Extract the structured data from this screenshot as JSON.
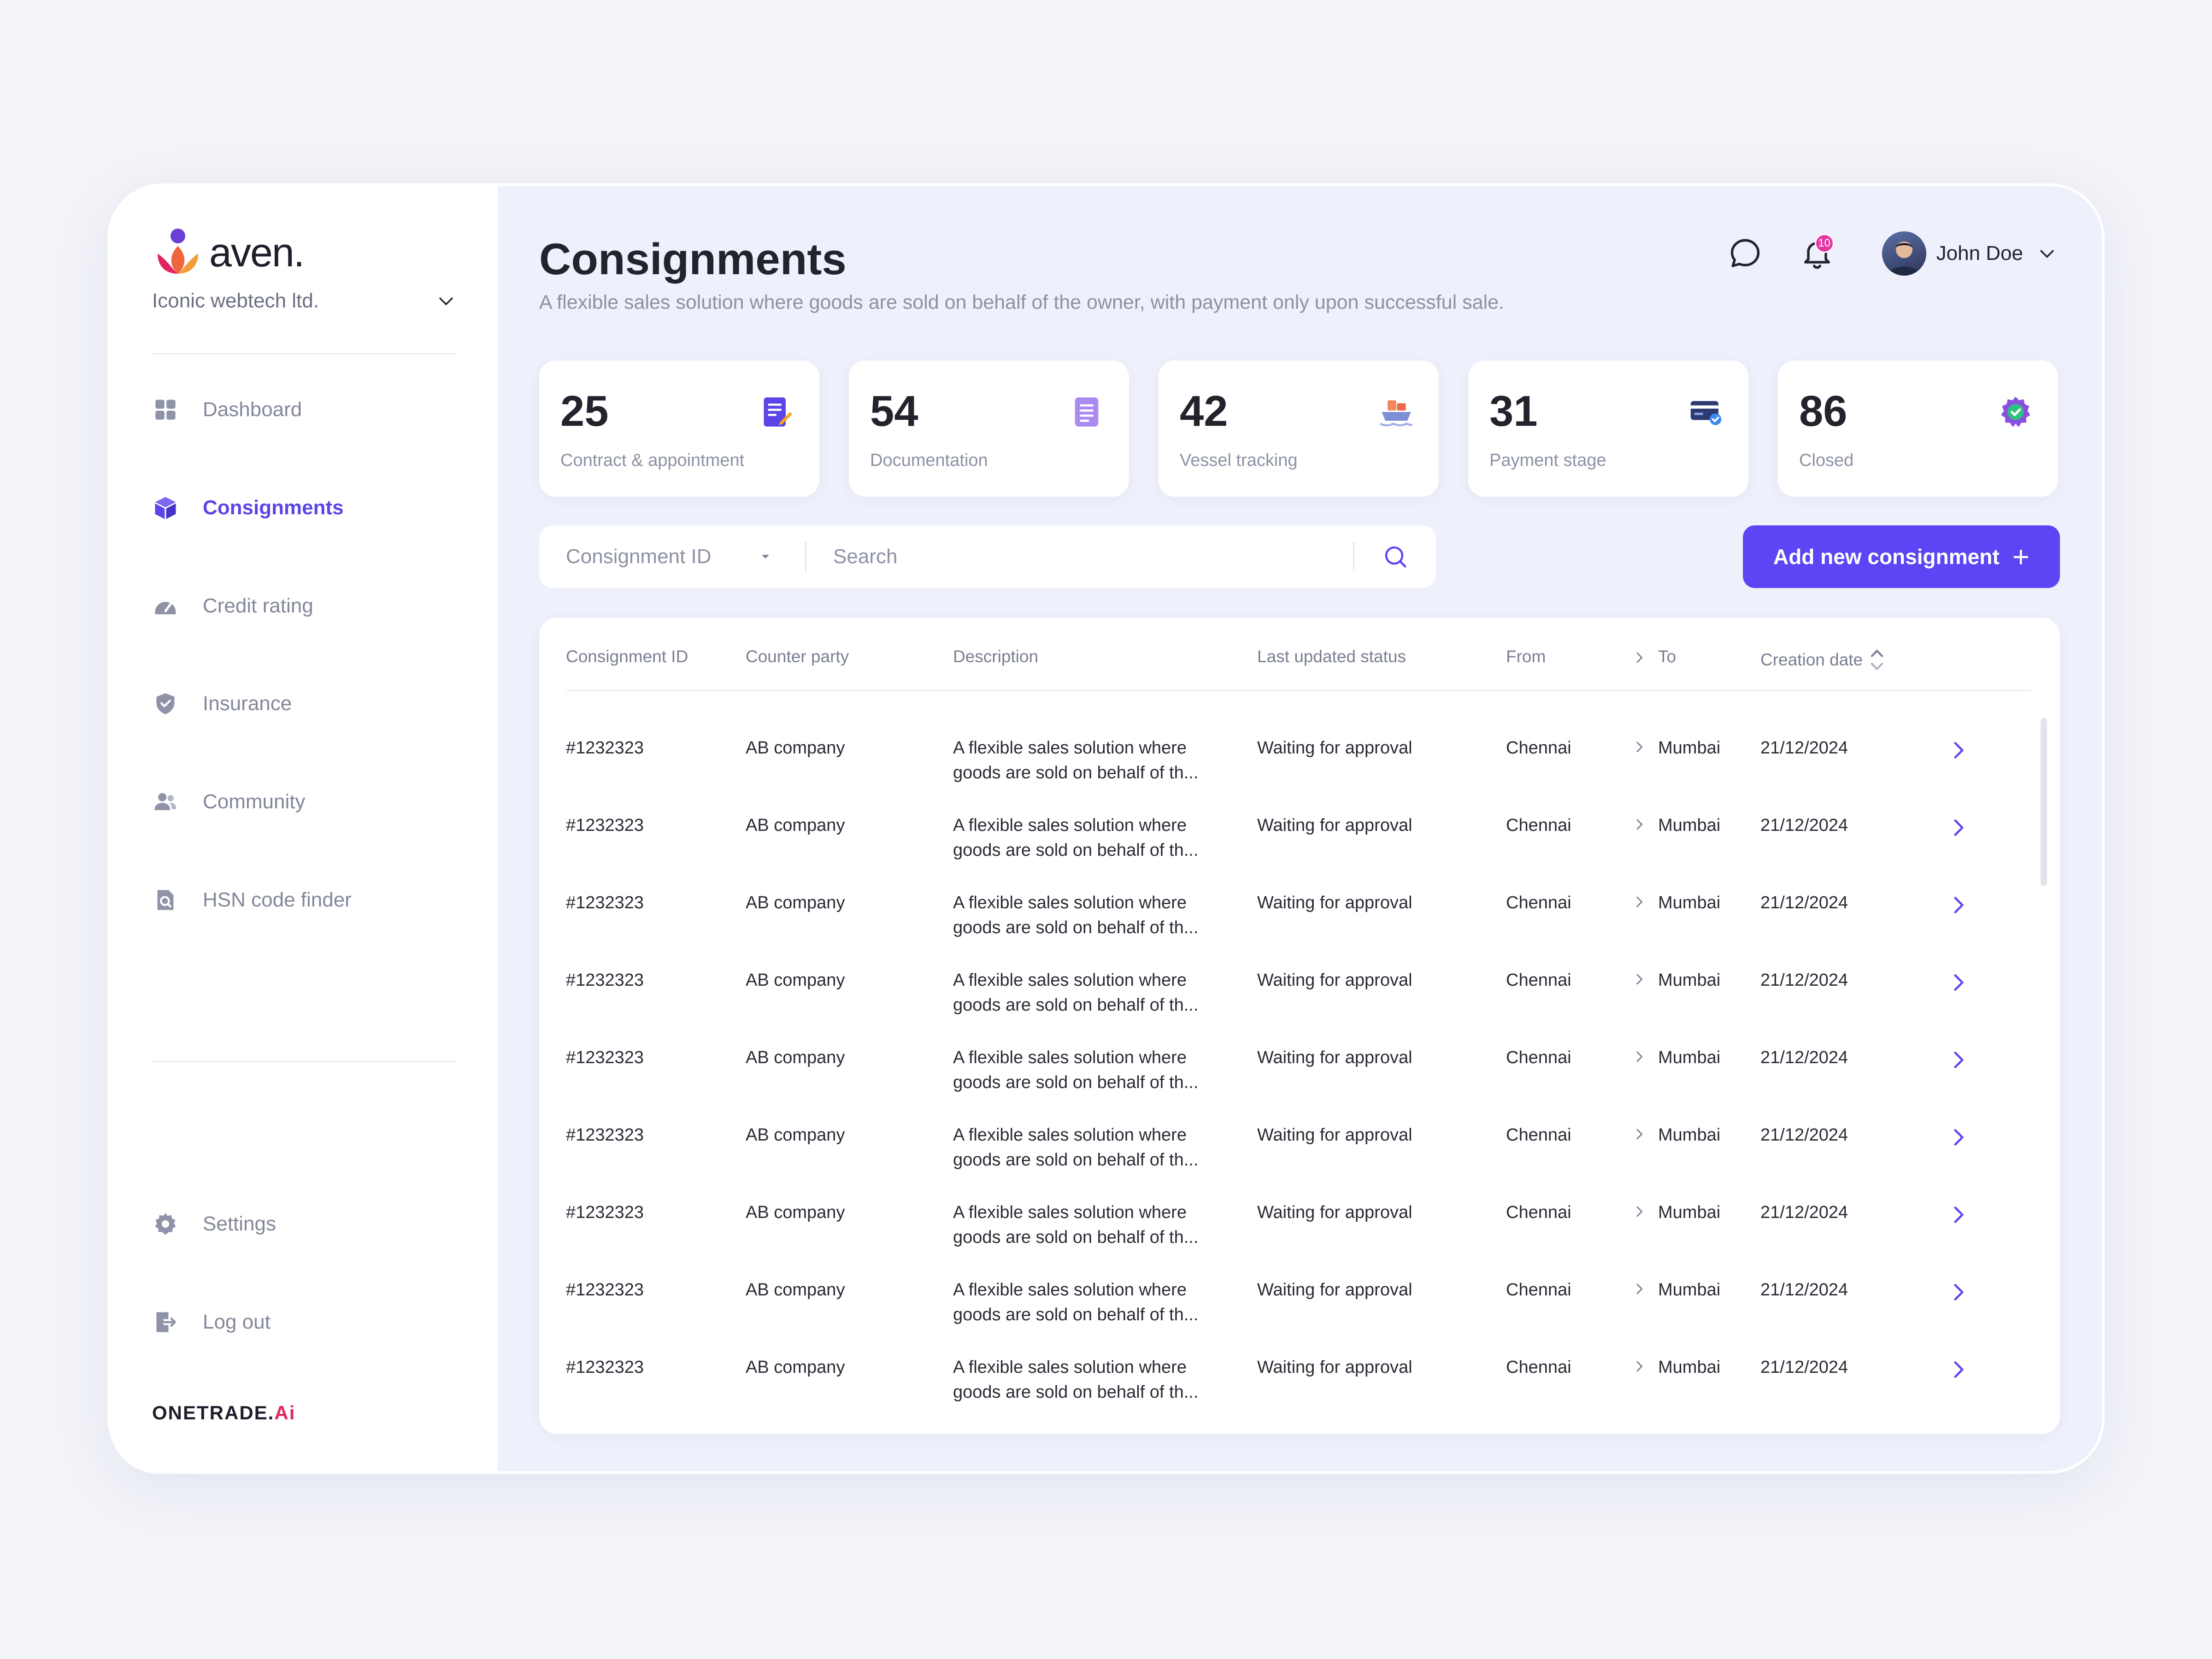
{
  "brand": {
    "name": "aven.",
    "org": "Iconic webtech ltd.",
    "footer_main": "ONETRADE.",
    "footer_accent": "Ai"
  },
  "nav": {
    "items": [
      {
        "label": "Dashboard",
        "icon": "dashboard-icon"
      },
      {
        "label": "Consignments",
        "icon": "cube-icon",
        "active": true
      },
      {
        "label": "Credit rating",
        "icon": "gauge-icon"
      },
      {
        "label": "Insurance",
        "icon": "shield-check-icon"
      },
      {
        "label": "Community",
        "icon": "users-icon"
      },
      {
        "label": "HSN code finder",
        "icon": "search-document-icon"
      }
    ],
    "bottom": [
      {
        "label": "Settings",
        "icon": "gear-icon"
      },
      {
        "label": "Log out",
        "icon": "logout-icon"
      }
    ]
  },
  "header": {
    "title": "Consignments",
    "subtitle": "A flexible sales solution where goods are sold on behalf of the owner, with payment only upon successful sale.",
    "notifications": "10",
    "user": "John Doe"
  },
  "stats": [
    {
      "value": "25",
      "label": "Contract & appointment",
      "icon": "contract-icon"
    },
    {
      "value": "54",
      "label": "Documentation",
      "icon": "document-icon"
    },
    {
      "value": "42",
      "label": "Vessel tracking",
      "icon": "vessel-icon"
    },
    {
      "value": "31",
      "label": "Payment stage",
      "icon": "card-icon"
    },
    {
      "value": "86",
      "label": "Closed",
      "icon": "badge-check-icon"
    }
  ],
  "filter": {
    "select_label": "Consignment ID",
    "search_placeholder": "Search"
  },
  "add_button": "Add new consignment",
  "colors": {
    "accent": "#5b45f5",
    "badge": "#e536a5"
  },
  "table": {
    "headers": {
      "id": "Consignment ID",
      "party": "Counter party",
      "desc": "Description",
      "status": "Last updated status",
      "from": "From",
      "to": "To",
      "date": "Creation date"
    },
    "rows": [
      {
        "id": "#1232323",
        "party": "AB company",
        "desc1": "A flexible sales solution where",
        "desc2": "goods are sold on behalf of th...",
        "status": "Waiting for approval",
        "from": "Chennai",
        "to": "Mumbai",
        "date": "21/12/2024"
      },
      {
        "id": "#1232323",
        "party": "AB company",
        "desc1": "A flexible sales solution where",
        "desc2": "goods are sold on behalf of th...",
        "status": "Waiting for approval",
        "from": "Chennai",
        "to": "Mumbai",
        "date": "21/12/2024"
      },
      {
        "id": "#1232323",
        "party": "AB company",
        "desc1": "A flexible sales solution where",
        "desc2": "goods are sold on behalf of th...",
        "status": "Waiting for approval",
        "from": "Chennai",
        "to": "Mumbai",
        "date": "21/12/2024"
      },
      {
        "id": "#1232323",
        "party": "AB company",
        "desc1": "A flexible sales solution where",
        "desc2": "goods are sold on behalf of th...",
        "status": "Waiting for approval",
        "from": "Chennai",
        "to": "Mumbai",
        "date": "21/12/2024"
      },
      {
        "id": "#1232323",
        "party": "AB company",
        "desc1": "A flexible sales solution where",
        "desc2": "goods are sold on behalf of th...",
        "status": "Waiting for approval",
        "from": "Chennai",
        "to": "Mumbai",
        "date": "21/12/2024"
      },
      {
        "id": "#1232323",
        "party": "AB company",
        "desc1": "A flexible sales solution where",
        "desc2": "goods are sold on behalf of th...",
        "status": "Waiting for approval",
        "from": "Chennai",
        "to": "Mumbai",
        "date": "21/12/2024"
      },
      {
        "id": "#1232323",
        "party": "AB company",
        "desc1": "A flexible sales solution where",
        "desc2": "goods are sold on behalf of th...",
        "status": "Waiting for approval",
        "from": "Chennai",
        "to": "Mumbai",
        "date": "21/12/2024"
      },
      {
        "id": "#1232323",
        "party": "AB company",
        "desc1": "A flexible sales solution where",
        "desc2": "goods are sold on behalf of th...",
        "status": "Waiting for approval",
        "from": "Chennai",
        "to": "Mumbai",
        "date": "21/12/2024"
      },
      {
        "id": "#1232323",
        "party": "AB company",
        "desc1": "A flexible sales solution where",
        "desc2": "goods are sold on behalf of th...",
        "status": "Waiting for approval",
        "from": "Chennai",
        "to": "Mumbai",
        "date": "21/12/2024"
      }
    ]
  }
}
